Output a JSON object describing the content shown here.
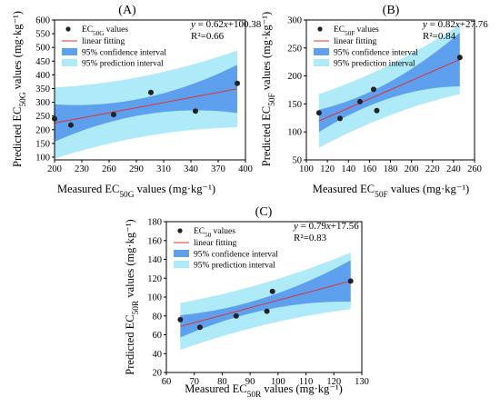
{
  "chart_data": [
    {
      "panel_label": "(A)",
      "type": "scatter",
      "xlabel": "Measured EC50G values",
      "xlabel_sub": "50G",
      "xlabel_unit": "(mg·kg⁻¹)",
      "ylabel": "Predicted EC50G values",
      "ylabel_sub": "50G",
      "ylabel_unit": "(mg·kg⁻¹)",
      "xlim": [
        200,
        410
      ],
      "ylim": [
        90,
        600
      ],
      "xticks": [
        200,
        230,
        260,
        290,
        310,
        340,
        370,
        400
      ],
      "xtick_labels": [
        "200",
        "230",
        "260",
        "290",
        "310",
        "340",
        "370",
        "400"
      ],
      "xticks_rendered": [
        200,
        230,
        260,
        290,
        310,
        340,
        370,
        400
      ],
      "yticks": [
        100,
        150,
        200,
        250,
        300,
        350,
        400,
        450,
        500,
        550,
        600
      ],
      "points": {
        "x": [
          200,
          218,
          265,
          306,
          355,
          401
        ],
        "y": [
          240,
          217,
          255,
          336,
          268,
          369
        ]
      },
      "fit": {
        "slope": 0.62,
        "intercept": 100.38
      },
      "equation": "y = 0.62x+100.38",
      "r2": "R²=0.66",
      "ci_half": {
        "min": 30,
        "edge": 88,
        "center": 290
      },
      "pi_half": {
        "min": 110,
        "edge": 140,
        "center": 290
      },
      "legend": {
        "points": "EC50G values",
        "points_sub": "50G",
        "fit": "linear fitting",
        "ci": "95% confidence interval",
        "pi": "95% prediction interval"
      }
    },
    {
      "panel_label": "(B)",
      "type": "scatter",
      "xlabel": "Measured EC50F values",
      "xlabel_sub": "50F",
      "xlabel_unit": "(mg·kg⁻¹)",
      "ylabel": "Predicted EC50F values",
      "ylabel_sub": "50F",
      "ylabel_unit": "(mg·kg⁻¹)",
      "xlim": [
        100,
        260
      ],
      "ylim": [
        50,
        300
      ],
      "xticks": [
        100,
        120,
        140,
        160,
        180,
        200,
        220,
        240,
        260
      ],
      "yticks": [
        50,
        100,
        150,
        200,
        250,
        300
      ],
      "points": {
        "x": [
          112,
          132,
          151,
          164,
          167,
          246
        ],
        "y": [
          134,
          124,
          154,
          176,
          138,
          233
        ]
      },
      "fit": {
        "slope": 0.82,
        "intercept": 27.76
      },
      "equation": "y = 0.82x+27.76",
      "r2": "R²=0.84",
      "ci_half": {
        "min": 12,
        "edge": 48,
        "center": 155
      },
      "pi_half": {
        "min": 44,
        "edge": 62,
        "center": 155
      },
      "legend": {
        "points": "EC50F values",
        "points_sub": "50F",
        "fit": "linear fitting",
        "ci": "95% confidence interval",
        "pi": "95% prediction interval"
      }
    },
    {
      "panel_label": "(C)",
      "type": "scatter",
      "xlabel": "Measured EC50R values",
      "xlabel_sub": "50R",
      "xlabel_unit": "(mg·kg⁻¹)",
      "ylabel": "Predicted EC50R values",
      "ylabel_sub": "50R",
      "ylabel_unit": "(mg·kg⁻¹)",
      "xlim": [
        60,
        130
      ],
      "ylim": [
        20,
        180
      ],
      "xticks": [
        60,
        70,
        80,
        90,
        100,
        110,
        120,
        130
      ],
      "yticks": [
        20,
        40,
        60,
        80,
        100,
        120,
        140,
        160,
        180
      ],
      "points": {
        "x": [
          65,
          72,
          85,
          96,
          98,
          126
        ],
        "y": [
          76,
          68,
          80,
          85,
          106,
          117
        ]
      },
      "fit": {
        "slope": 0.79,
        "intercept": 17.56
      },
      "equation": "y = 0.79x+17.56",
      "r2": "R²=0.83",
      "ci_half": {
        "min": 6,
        "edge": 22,
        "center": 88
      },
      "pi_half": {
        "min": 22,
        "edge": 30,
        "center": 88
      },
      "legend": {
        "points": "EC50 values",
        "points_sub": "50",
        "fit": "linear fitting",
        "ci": "95% confidence interval",
        "pi": "95% prediction interval"
      }
    }
  ],
  "colors": {
    "prediction_band": "#aeeaf8",
    "confidence_band": "#5ea0ee",
    "fit_line": "#e03232",
    "point": "#222222"
  }
}
